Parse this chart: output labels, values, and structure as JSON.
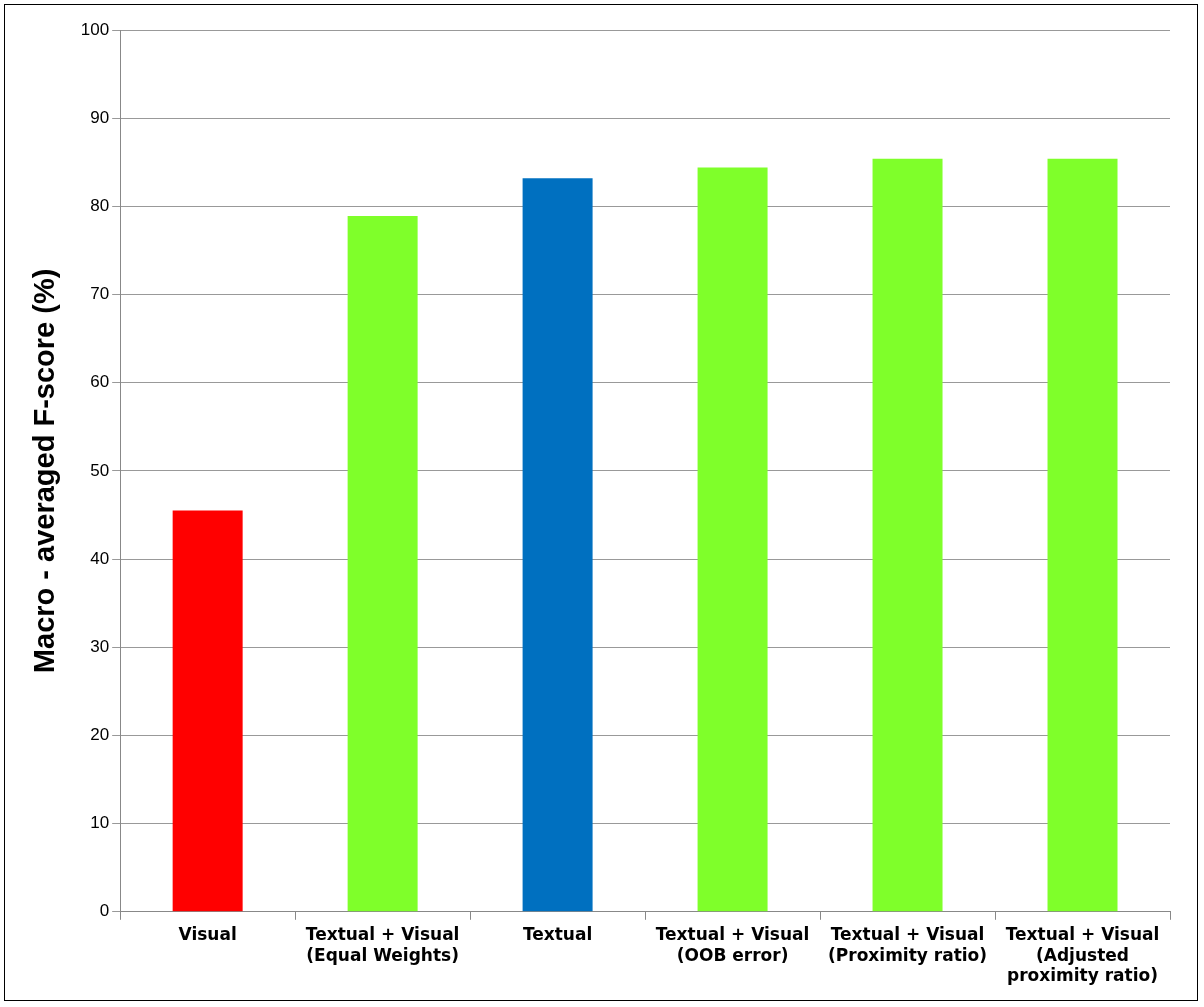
{
  "chart_data": {
    "type": "bar",
    "ylabel": "Macro - averaged F-score (%)",
    "categories": [
      "Visual",
      "Textual + Visual\n(Equal Weights)",
      "Textual",
      "Textual + Visual\n(OOB error)",
      "Textual + Visual\n(Proximity ratio)",
      "Textual + Visual\n(Adjusted\nproximity ratio)"
    ],
    "values": [
      45.5,
      78.9,
      83.2,
      84.4,
      85.4,
      85.4
    ],
    "colors": [
      "#ff0000",
      "#7fff2a",
      "#0070c0",
      "#7fff2a",
      "#7fff2a",
      "#7fff2a"
    ],
    "ylim": [
      0,
      100
    ],
    "yticks": [
      0,
      10,
      20,
      30,
      40,
      50,
      60,
      70,
      80,
      90,
      100
    ],
    "grid": "y",
    "legend": false
  }
}
